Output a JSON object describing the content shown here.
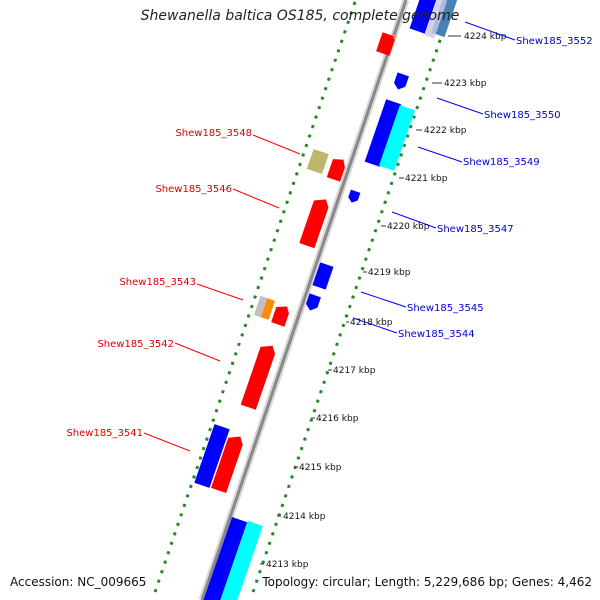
{
  "title": "Shewanella baltica OS185, complete genome",
  "footer": {
    "accession": "Accession: NC_009665",
    "summary": "Topology: circular; Length: 5,229,686 bp; Genes: 4,462"
  },
  "colors": {
    "forward_gene": "#ff0000",
    "reverse_gene": "#0000ff",
    "cyan_gene": "#00ffff",
    "khaki_gene": "#bdb76b",
    "orange_gene": "#ff8c00",
    "grey_gene": "#b8b8b8",
    "steel_gene": "#4682b4",
    "backbone": "#888888",
    "tick_dots": "#228b22",
    "left_label": "#dd0000",
    "right_label": "#0000cc"
  },
  "scale": {
    "unit": "kbp",
    "ticks": [
      "4213 kbp",
      "4214 kbp",
      "4215 kbp",
      "4216 kbp",
      "4217 kbp",
      "4218 kbp",
      "4219 kbp",
      "4220 kbp",
      "4221 kbp",
      "4222 kbp",
      "4223 kbp",
      "4224 kbp"
    ]
  },
  "labels_left": [
    "Shew185_3548",
    "Shew185_3546",
    "Shew185_3543",
    "Shew185_3542",
    "Shew185_3541"
  ],
  "labels_right": [
    "Shew185_3552",
    "Shew185_3550",
    "Shew185_3549",
    "Shew185_3547",
    "Shew185_3545",
    "Shew185_3544"
  ]
}
